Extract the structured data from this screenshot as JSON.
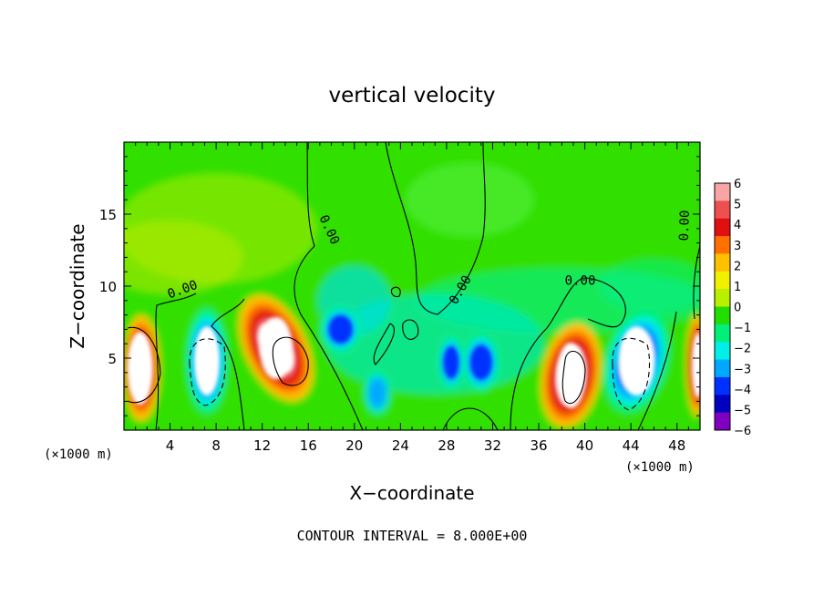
{
  "chart_data": {
    "type": "heatmap",
    "title": "vertical velocity",
    "xlabel": "X−coordinate",
    "ylabel": "Z−coordinate",
    "x_unit_label_left": "(×1000 m)",
    "x_unit_label_right": "(×1000 m)",
    "footer": "CONTOUR INTERVAL = 8.000E+00",
    "xlim": [
      0,
      50
    ],
    "ylim": [
      0,
      20
    ],
    "xticks": [
      4,
      8,
      12,
      16,
      20,
      24,
      28,
      32,
      36,
      40,
      44,
      48
    ],
    "xtick_labels": [
      "4",
      "8",
      "12",
      "16",
      "20",
      "24",
      "28",
      "32",
      "36",
      "40",
      "44",
      "48"
    ],
    "yticks": [
      5,
      10,
      15
    ],
    "ytick_labels": [
      "5",
      "10",
      "15"
    ],
    "contour_labels": [
      {
        "text": "0.00",
        "x": 5.2,
        "y": 9.5,
        "angle": -20
      },
      {
        "text": "0.00",
        "x": 17.5,
        "y": 13.8,
        "angle": 65
      },
      {
        "text": "0.00",
        "x": 29.5,
        "y": 9.6,
        "angle": -60
      },
      {
        "text": "0.00",
        "x": 39.6,
        "y": 10.1,
        "angle": 0
      },
      {
        "text": "0.00",
        "x": 49.0,
        "y": 14.2,
        "angle": -88
      }
    ],
    "colorbar": {
      "labels": [
        "6",
        "5",
        "4",
        "3",
        "2",
        "1",
        "0",
        "−1",
        "−2",
        "−3",
        "−4",
        "−5",
        "−6"
      ],
      "colors": [
        "#f7a5a5",
        "#ee5050",
        "#e01010",
        "#ff7000",
        "#ffc000",
        "#f0f000",
        "#b8f000",
        "#22dd00",
        "#00f07a",
        "#00f0e8",
        "#00a8ff",
        "#0030ff",
        "#0000c0",
        "#8000c0"
      ]
    },
    "features": [
      {
        "type": "updraft",
        "x": 1.5,
        "z": 4.3,
        "strength": 6.5
      },
      {
        "type": "downdraft",
        "x": 7.2,
        "z": 4.8,
        "strength": -5.5
      },
      {
        "type": "updraft",
        "x": 13.2,
        "z": 5.7,
        "strength": 6.5
      },
      {
        "type": "downdraft",
        "x": 18.8,
        "z": 7.0,
        "strength": -5.0
      },
      {
        "type": "downdraft",
        "x": 22.0,
        "z": 2.6,
        "strength": -3.5
      },
      {
        "type": "downdraft",
        "x": 28.4,
        "z": 4.7,
        "strength": -4.5
      },
      {
        "type": "downdraft",
        "x": 31.0,
        "z": 4.7,
        "strength": -5.5
      },
      {
        "type": "updraft",
        "x": 38.8,
        "z": 3.8,
        "strength": 6.5
      },
      {
        "type": "downdraft",
        "x": 44.5,
        "z": 4.8,
        "strength": -5.5
      },
      {
        "type": "updraft",
        "x": 49.8,
        "z": 4.5,
        "strength": 6.0
      }
    ]
  }
}
